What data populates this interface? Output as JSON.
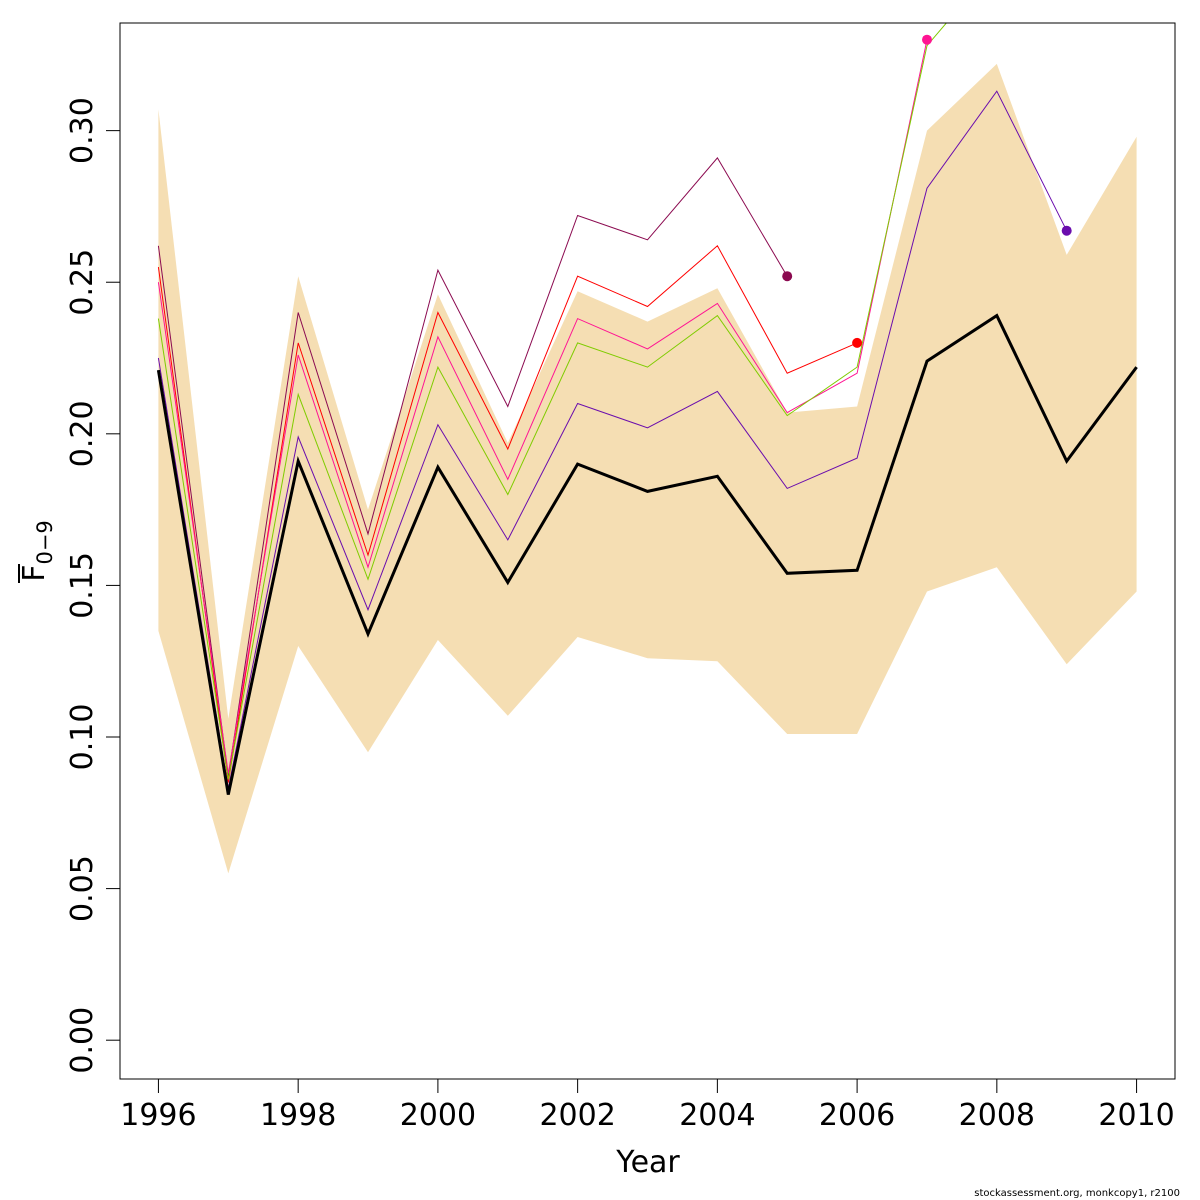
{
  "chart_data": {
    "type": "line",
    "xlabel": "Year",
    "ylabel": "F",
    "ylabel_subscript": "0−9",
    "xlim": [
      1995.45,
      2010.55
    ],
    "ylim": [
      -0.0128,
      0.3355
    ],
    "xticks": [
      1996,
      1998,
      2000,
      2002,
      2004,
      2006,
      2008,
      2010
    ],
    "xtick_labels": [
      "1996",
      "1998",
      "2000",
      "2002",
      "2004",
      "2006",
      "2008",
      "2010"
    ],
    "yticks": [
      0,
      0.05,
      0.1,
      0.15,
      0.2,
      0.25,
      0.3
    ],
    "ytick_labels": [
      "0.00",
      "0.05",
      "0.10",
      "0.15",
      "0.20",
      "0.25",
      "0.30"
    ],
    "grid": false,
    "legend": "none",
    "years": [
      1996,
      1997,
      1998,
      1999,
      2000,
      2001,
      2002,
      2003,
      2004,
      2005,
      2006,
      2007,
      2008,
      2009,
      2010
    ],
    "confidence_band": {
      "color": "#F5DEB3",
      "upper": [
        0.307,
        0.106,
        0.252,
        0.175,
        0.246,
        0.197,
        0.247,
        0.237,
        0.248,
        0.207,
        0.209,
        0.3,
        0.322,
        0.259,
        0.298
      ],
      "lower": [
        0.135,
        0.055,
        0.13,
        0.095,
        0.132,
        0.107,
        0.133,
        0.126,
        0.125,
        0.101,
        0.101,
        0.148,
        0.156,
        0.124,
        0.148
      ]
    },
    "series": [
      {
        "color": "#8B0A50",
        "x": [
          1996,
          1997,
          1998,
          1999,
          2000,
          2001,
          2002,
          2003,
          2004,
          2005
        ],
        "values": [
          0.262,
          0.087,
          0.24,
          0.167,
          0.254,
          0.209,
          0.272,
          0.264,
          0.291,
          0.252
        ],
        "end_point": true
      },
      {
        "color": "#FF0000",
        "x": [
          1996,
          1997,
          1998,
          1999,
          2000,
          2001,
          2002,
          2003,
          2004,
          2005,
          2006
        ],
        "values": [
          0.255,
          0.085,
          0.23,
          0.16,
          0.24,
          0.195,
          0.252,
          0.242,
          0.262,
          0.22,
          0.23
        ],
        "end_point": true
      },
      {
        "color": "#FF1493",
        "x": [
          1996,
          1997,
          1998,
          1999,
          2000,
          2001,
          2002,
          2003,
          2004,
          2005,
          2006,
          2007
        ],
        "values": [
          0.25,
          0.088,
          0.226,
          0.156,
          0.232,
          0.185,
          0.238,
          0.228,
          0.243,
          0.207,
          0.22,
          0.33
        ],
        "end_point": true
      },
      {
        "color": "#7FCC00",
        "x": [
          1996,
          1997,
          1998,
          1999,
          2000,
          2001,
          2002,
          2003,
          2004,
          2005,
          2006,
          2007,
          2008
        ],
        "values": [
          0.238,
          0.086,
          0.213,
          0.152,
          0.222,
          0.18,
          0.23,
          0.222,
          0.239,
          0.206,
          0.222,
          0.328,
          0.355
        ],
        "end_point": false
      },
      {
        "color": "#6A0DAD",
        "x": [
          1996,
          1997,
          1998,
          1999,
          2000,
          2001,
          2002,
          2003,
          2004,
          2005,
          2006,
          2007,
          2008,
          2009
        ],
        "values": [
          0.225,
          0.083,
          0.199,
          0.142,
          0.203,
          0.165,
          0.21,
          0.202,
          0.214,
          0.182,
          0.192,
          0.281,
          0.313,
          0.267
        ],
        "end_point": true
      },
      {
        "color": "#000000",
        "x": [
          1996,
          1997,
          1998,
          1999,
          2000,
          2001,
          2002,
          2003,
          2004,
          2005,
          2006,
          2007,
          2008,
          2009,
          2010
        ],
        "values": [
          0.221,
          0.081,
          0.191,
          0.134,
          0.189,
          0.151,
          0.19,
          0.181,
          0.186,
          0.154,
          0.155,
          0.224,
          0.239,
          0.191,
          0.222
        ],
        "end_point": false,
        "emphasis": true
      }
    ]
  },
  "credit": "stockassessment.org, monkcopy1, r2100"
}
